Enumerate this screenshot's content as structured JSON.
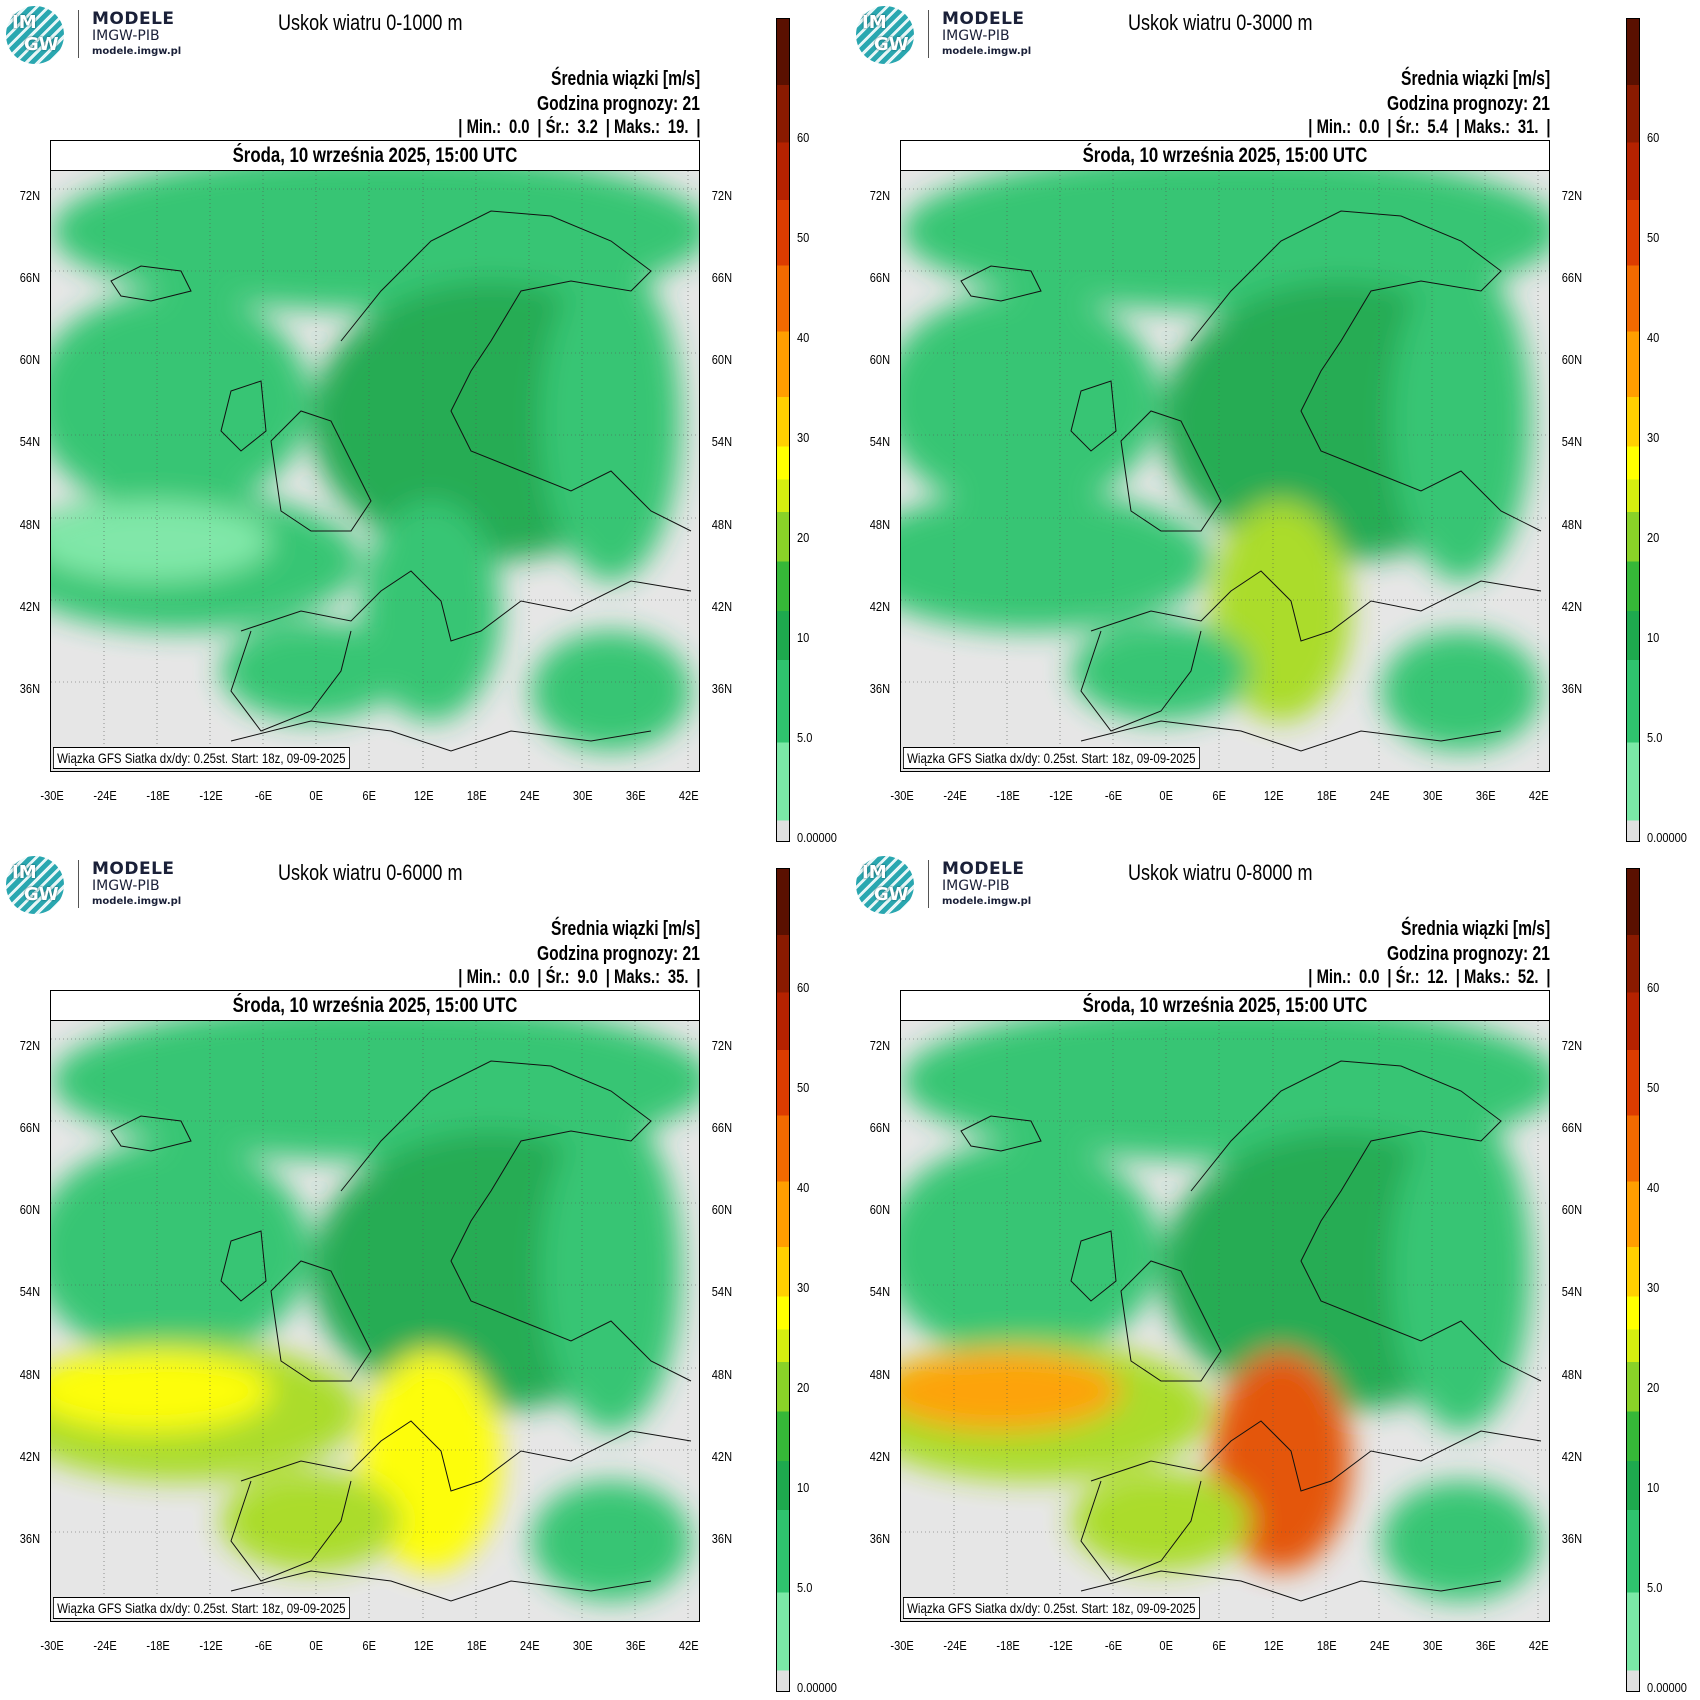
{
  "logo": {
    "line1": "MODELE",
    "line2": "IMGW-PIB",
    "line3": "modele.imgw.pl",
    "badge_top": "IM",
    "badge_bottom": "GW"
  },
  "common": {
    "subtitle": "Średnia wiązki [m/s]",
    "forecast_hour": "Godzina prognozy: 21",
    "date": "Środa, 10 września 2025, 15:00 UTC",
    "footer": "Wiązka GFS Siatka dx/dy: 0.25st. Start: 18z, 09-09-2025",
    "min_label": "| Min.:",
    "mean_label": "| Śr.:",
    "max_label": "| Maks.:",
    "lat_labels": [
      "72N",
      "66N",
      "60N",
      "54N",
      "48N",
      "42N",
      "36N"
    ],
    "lon_labels": [
      "-30E",
      "-24E",
      "-18E",
      "-12E",
      "-6E",
      "0E",
      "6E",
      "12E",
      "18E",
      "24E",
      "30E",
      "36E",
      "42E"
    ],
    "colorbar_labels": [
      "60",
      "50",
      "40",
      "30",
      "20",
      "10",
      "5.0",
      "0.00000"
    ]
  },
  "panels": [
    {
      "title": "Uskok wiatru 0-1000 m",
      "min": "0.0",
      "mean": "3.2",
      "max": "19.",
      "intensity": 0
    },
    {
      "title": "Uskok wiatru 0-3000 m",
      "min": "0.0",
      "mean": "5.4",
      "max": "31.",
      "intensity": 1
    },
    {
      "title": "Uskok wiatru 0-6000 m",
      "min": "0.0",
      "mean": "9.0",
      "max": "35.",
      "intensity": 2
    },
    {
      "title": "Uskok wiatru 0-8000 m",
      "min": "0.0",
      "mean": "12.",
      "max": "52.",
      "intensity": 3
    }
  ],
  "colors": {
    "gray": "#e6e6e6",
    "green_light": "#7be8a6",
    "green": "#2fc46e",
    "green_dark": "#1ea94e",
    "yellowgreen": "#a8dc20",
    "yellow": "#ffff00",
    "orange": "#ffa000",
    "red": "#e45000"
  }
}
